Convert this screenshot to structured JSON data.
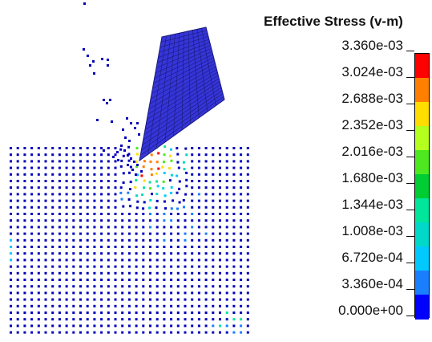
{
  "legend": {
    "title": "Effective Stress (v-m)",
    "labels": [
      "3.360e-03",
      "3.024e-03",
      "2.688e-03",
      "2.352e-03",
      "2.016e-03",
      "1.680e-03",
      "1.344e-03",
      "1.008e-03",
      "6.720e-04",
      "3.360e-04",
      "0.000e+00"
    ],
    "colors": [
      "#ff0000",
      "#ff7f00",
      "#ffdd00",
      "#b5ff1e",
      "#4de81f",
      "#00cc33",
      "#00e69a",
      "#00d9c9",
      "#00c9ff",
      "#1a7fff",
      "#0000ff"
    ]
  },
  "scene": {
    "tool_color": "#3535d8",
    "particle_color": "#0000bb"
  }
}
